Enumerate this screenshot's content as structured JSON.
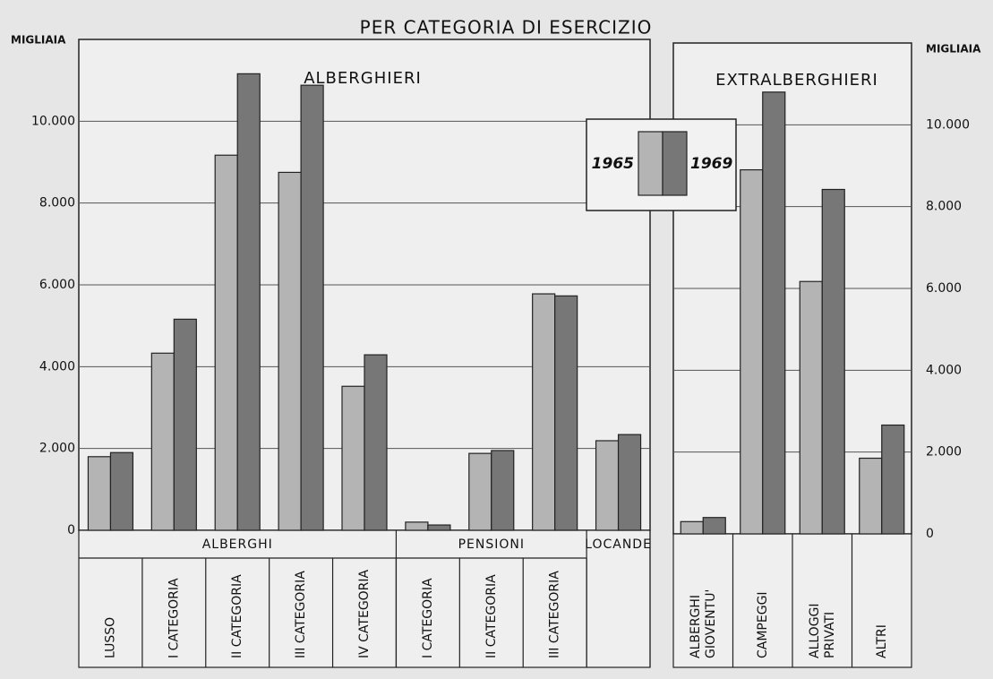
{
  "title": "PER CATEGORIA DI ESERCIZIO",
  "legend_title": null,
  "chart_data": [
    {
      "type": "bar",
      "panel_title": "ALBERGHIERI",
      "y_label": "MIGLIAIA",
      "ylim": [
        0,
        12000
      ],
      "yticks": [
        0,
        {
          "value": 2000,
          "label": "2.000"
        },
        {
          "value": 4000,
          "label": "4.000"
        },
        {
          "value": 6000,
          "label": "6.000"
        },
        {
          "value": 8000,
          "label": "8.000"
        },
        {
          "value": 10000,
          "label": "10.000"
        }
      ],
      "grid": true,
      "groups": [
        {
          "name": "ALBERGHI",
          "categories": [
            "LUSSO",
            "I CATEGORIA",
            "II CATEGORIA",
            "III CATEGORIA",
            "IV CATEGORIA"
          ]
        },
        {
          "name": "PENSIONI",
          "categories": [
            "I CATEGORIA",
            "II CATEGORIA",
            "III CATEGORIA"
          ]
        },
        {
          "name": "LOCANDE",
          "categories": [
            null
          ]
        }
      ],
      "series": [
        {
          "name": "1965",
          "color": "#b4b4b4",
          "values": [
            1800,
            4330,
            9170,
            8750,
            3520,
            200,
            1880,
            5780,
            2190
          ]
        },
        {
          "name": "1969",
          "color": "#777777",
          "values": [
            1900,
            5160,
            11160,
            10880,
            4290,
            130,
            1950,
            5730,
            2340
          ]
        }
      ]
    },
    {
      "type": "bar",
      "panel_title": "EXTRALBERGHIERI",
      "y_label": "MIGLIAIA",
      "ylim": [
        0,
        12000
      ],
      "yticks": [
        0,
        {
          "value": 2000,
          "label": "2.000"
        },
        {
          "value": 4000,
          "label": "4.000"
        },
        {
          "value": 6000,
          "label": "6.000"
        },
        {
          "value": 8000,
          "label": "8.000"
        },
        {
          "value": 10000,
          "label": "10.000"
        }
      ],
      "grid": true,
      "categories": [
        [
          "ALBERGHI",
          "GIOVENTU'"
        ],
        "CAMPEGGI",
        [
          "ALLOGGI",
          "PRIVATI"
        ],
        "ALTRI"
      ],
      "series": [
        {
          "color": "#b4b4b4",
          "values": [
            300,
            8900,
            6170,
            1850
          ]
        },
        {
          "color": "#777777",
          "values": [
            400,
            10800,
            8420,
            2660
          ]
        }
      ]
    }
  ]
}
